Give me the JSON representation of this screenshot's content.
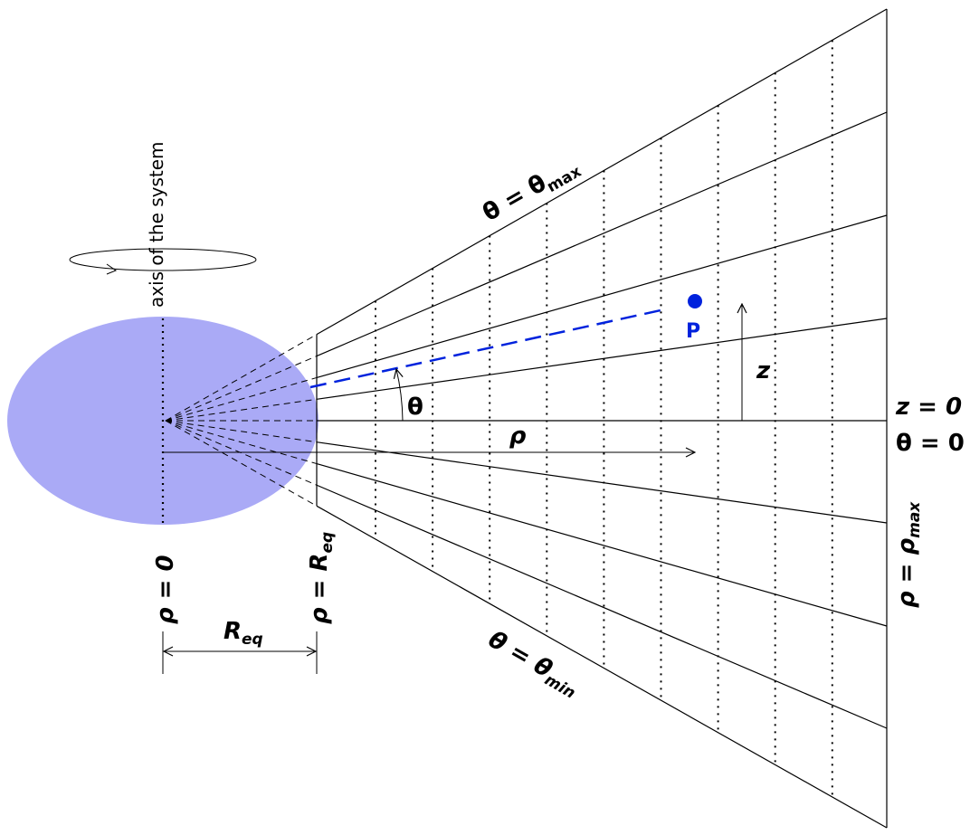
{
  "axis_label": "axis of the system",
  "labels": {
    "theta_max": {
      "text": "θ = θ",
      "sub": "max"
    },
    "theta_min": {
      "text": "θ = θ",
      "sub": "min"
    },
    "point": {
      "text": "P"
    },
    "z": {
      "text": "z"
    },
    "theta": {
      "text": "θ"
    },
    "rho": {
      "text": "ρ"
    },
    "z_zero": {
      "text": "z = 0"
    },
    "theta_zero": {
      "text": "θ = 0"
    },
    "rho_max": {
      "text": "ρ = ρ",
      "sub": "max"
    },
    "rho_zero": {
      "text": "ρ = 0"
    },
    "rho_req": {
      "text": "ρ = R",
      "sub": "eq"
    },
    "req": {
      "text": "R",
      "sub": "eq"
    }
  }
}
